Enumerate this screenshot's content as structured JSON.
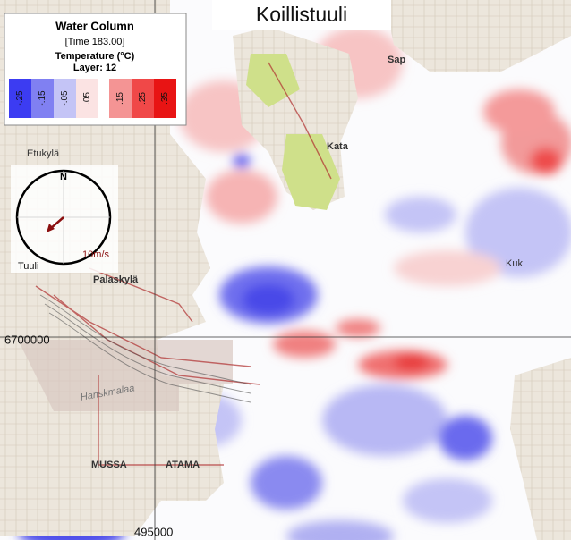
{
  "title": "Koillistuuli",
  "legend": {
    "title": "Water Column",
    "time": "[Time 183.00]",
    "variable": "Temperature (°C)",
    "layer": "Layer: 12",
    "items": [
      {
        "label": "-.25",
        "color": "#3c3cf2"
      },
      {
        "label": "-.15",
        "color": "#8080f2"
      },
      {
        "label": "-.05",
        "color": "#c4c4f6"
      },
      {
        "label": ".05",
        "color": "#fbe3e3"
      },
      {
        "label": ".15",
        "color": "#f49494"
      },
      {
        "label": ".25",
        "color": "#f04848"
      },
      {
        "label": ".35",
        "color": "#e81414"
      }
    ]
  },
  "wind": {
    "north": "N",
    "scale": "10m/s",
    "label": "Tuuli"
  },
  "coordinates": {
    "northing": "6700000",
    "easting": "495000"
  },
  "places": [
    "Etukylä",
    "Palaskylä",
    "Kata",
    "Sap",
    "Kuk",
    "MUSSA",
    "ATAMA",
    "Hanskmalaa"
  ]
}
